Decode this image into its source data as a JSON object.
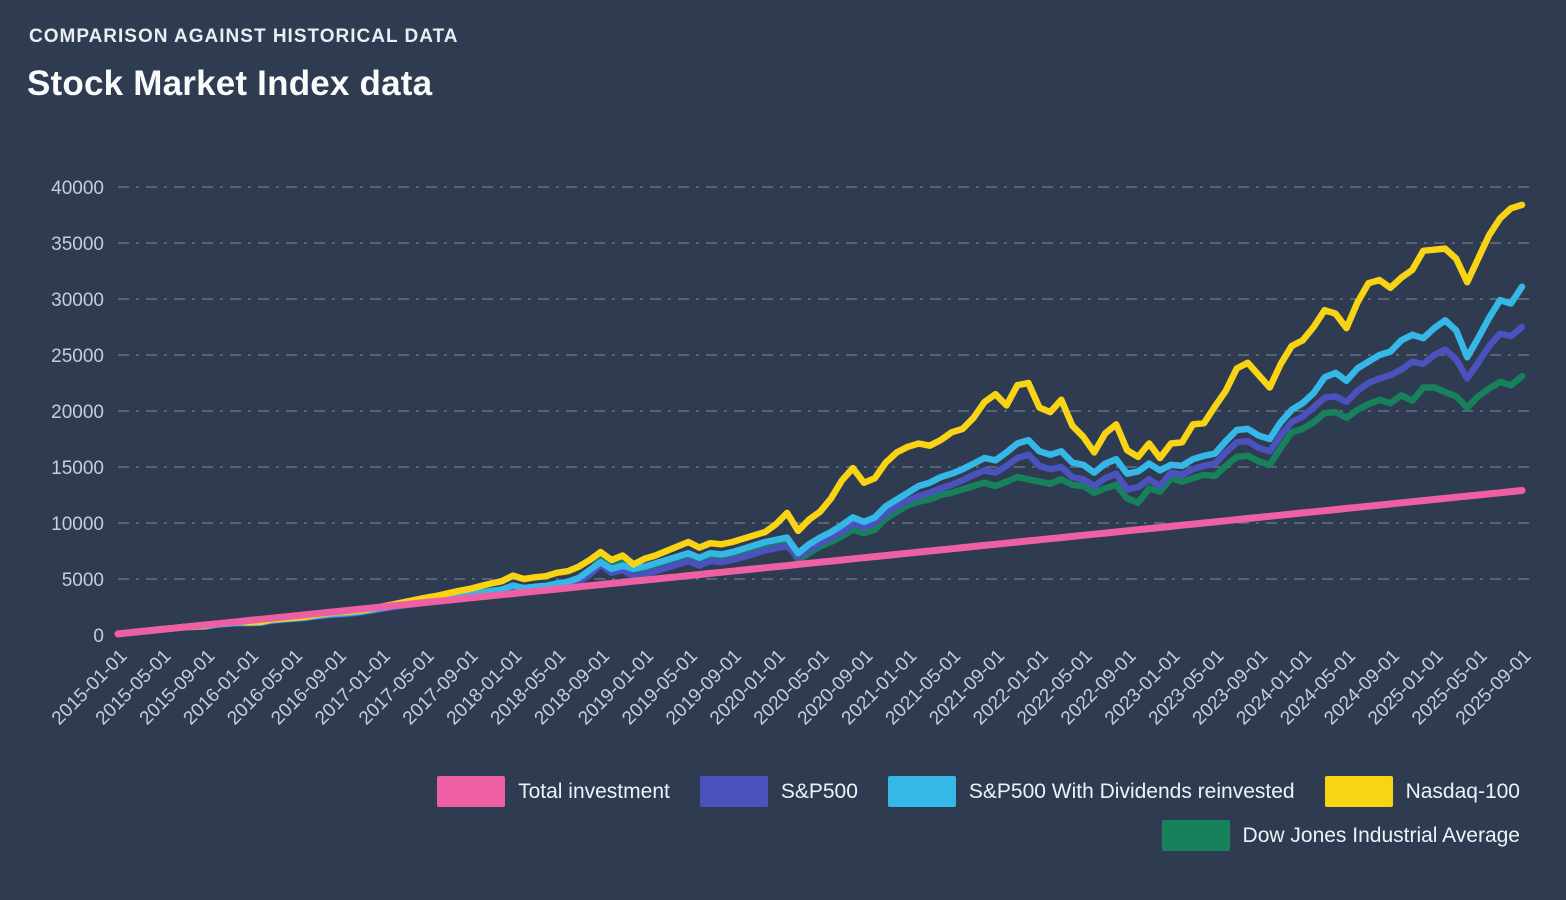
{
  "header": {
    "eyebrow": "COMPARISON AGAINST HISTORICAL DATA",
    "title": "Stock Market Index data"
  },
  "colors": {
    "background": "#2f3b50",
    "grid": "#9aa5b4",
    "axis_text": "#c5cedb",
    "title_text": "#fafbfd"
  },
  "chart_data": {
    "type": "line",
    "title": "Stock Market Index data",
    "xlabel": "",
    "ylabel": "",
    "ylim": [
      0,
      40000
    ],
    "grid": "horizontal-dashed",
    "legend_position": "bottom-right",
    "months_count": 129,
    "x_start": "2015-01-01",
    "x_end": "2025-09-01",
    "y_ticks": [
      0,
      5000,
      10000,
      15000,
      20000,
      25000,
      30000,
      35000,
      40000
    ],
    "x_tick_labels": [
      "2015-01-01",
      "2015-05-01",
      "2015-09-01",
      "2016-01-01",
      "2016-05-01",
      "2016-09-01",
      "2017-01-01",
      "2017-05-01",
      "2017-09-01",
      "2018-01-01",
      "2018-05-01",
      "2018-09-01",
      "2019-01-01",
      "2019-05-01",
      "2019-09-01",
      "2020-01-01",
      "2020-05-01",
      "2020-09-01",
      "2021-01-01",
      "2021-05-01",
      "2021-09-01",
      "2022-01-01",
      "2022-05-01",
      "2022-09-01",
      "2023-01-01",
      "2023-05-01",
      "2023-09-01",
      "2024-01-01",
      "2024-05-01",
      "2024-09-01",
      "2025-01-01",
      "2025-05-01",
      "2025-09-01"
    ],
    "draw_order": [
      4,
      1,
      2,
      3,
      0
    ],
    "series": [
      {
        "name": "Total investment",
        "color": "#ee5fa4",
        "stroke_width": 7,
        "values": [
          100,
          200,
          300,
          400,
          500,
          600,
          700,
          800,
          900,
          1000,
          1100,
          1200,
          1300,
          1400,
          1500,
          1600,
          1700,
          1800,
          1900,
          2000,
          2100,
          2200,
          2300,
          2400,
          2500,
          2600,
          2700,
          2800,
          2900,
          3000,
          3100,
          3200,
          3300,
          3400,
          3500,
          3600,
          3700,
          3800,
          3900,
          4000,
          4100,
          4200,
          4300,
          4400,
          4500,
          4600,
          4700,
          4800,
          4900,
          5000,
          5100,
          5200,
          5300,
          5400,
          5500,
          5600,
          5700,
          5800,
          5900,
          6000,
          6100,
          6200,
          6300,
          6400,
          6500,
          6600,
          6700,
          6800,
          6900,
          7000,
          7100,
          7200,
          7300,
          7400,
          7500,
          7600,
          7700,
          7800,
          7900,
          8000,
          8100,
          8200,
          8300,
          8400,
          8500,
          8600,
          8700,
          8800,
          8900,
          9000,
          9100,
          9200,
          9300,
          9400,
          9500,
          9600,
          9700,
          9800,
          9900,
          10000,
          10100,
          10200,
          10300,
          10400,
          10500,
          10600,
          10700,
          10800,
          10900,
          11000,
          11100,
          11200,
          11300,
          11400,
          11500,
          11600,
          11700,
          11800,
          11900,
          12000,
          12100,
          12200,
          12300,
          12400,
          12500,
          12600,
          12700,
          12800,
          12900
        ]
      },
      {
        "name": "S&P500",
        "color": "#4b51bd",
        "stroke_width": 6.5,
        "values": [
          100,
          205,
          295,
          400,
          500,
          590,
          690,
          720,
          780,
          930,
          1010,
          1080,
          1060,
          1100,
          1280,
          1370,
          1450,
          1520,
          1660,
          1760,
          1850,
          1900,
          2000,
          2160,
          2320,
          2480,
          2620,
          2760,
          2900,
          3020,
          3160,
          3300,
          3420,
          3580,
          3740,
          3860,
          4200,
          3980,
          4070,
          4130,
          4330,
          4470,
          4750,
          5400,
          6250,
          5550,
          5800,
          5200,
          5400,
          5700,
          6000,
          6300,
          6600,
          6200,
          6600,
          6500,
          6700,
          6950,
          7250,
          7550,
          7750,
          7950,
          7000,
          7600,
          8200,
          8700,
          9200,
          10000,
          9600,
          10000,
          10900,
          11500,
          12000,
          12400,
          12700,
          13100,
          13400,
          13800,
          14300,
          14700,
          14500,
          15100,
          15800,
          16100,
          15100,
          14800,
          15000,
          14100,
          13900,
          13300,
          14000,
          14400,
          13000,
          13200,
          13900,
          13300,
          14500,
          14300,
          14800,
          15100,
          15300,
          16300,
          17200,
          17300,
          16700,
          16400,
          17800,
          19000,
          19500,
          20300,
          21200,
          21300,
          20800,
          21800,
          22500,
          22900,
          23200,
          23700,
          24400,
          24200,
          25000,
          25500,
          24600,
          22900,
          24300,
          25800,
          26900,
          26700,
          27500
        ]
      },
      {
        "name": "S&P500 With Dividends reinvested",
        "color": "#35b8e8",
        "stroke_width": 6.5,
        "values": [
          100,
          205,
          300,
          405,
          505,
          595,
          700,
          730,
          790,
          950,
          1030,
          1100,
          1080,
          1120,
          1310,
          1400,
          1480,
          1560,
          1700,
          1810,
          1900,
          1960,
          2060,
          2230,
          2400,
          2570,
          2720,
          2870,
          3020,
          3150,
          3300,
          3450,
          3580,
          3750,
          3920,
          4060,
          4420,
          4200,
          4300,
          4380,
          4600,
          4750,
          5100,
          5800,
          6500,
          5900,
          6200,
          5900,
          6100,
          6400,
          6700,
          7000,
          7300,
          6900,
          7300,
          7200,
          7400,
          7700,
          8000,
          8300,
          8500,
          8700,
          7300,
          8100,
          8700,
          9200,
          9800,
          10500,
          10100,
          10500,
          11500,
          12100,
          12700,
          13300,
          13600,
          14100,
          14400,
          14800,
          15300,
          15800,
          15600,
          16300,
          17100,
          17400,
          16400,
          16100,
          16400,
          15400,
          15200,
          14500,
          15300,
          15700,
          14400,
          14600,
          15300,
          14700,
          15200,
          15100,
          15700,
          16000,
          16200,
          17300,
          18300,
          18400,
          17800,
          17500,
          19000,
          20100,
          20700,
          21600,
          23000,
          23400,
          22700,
          23800,
          24400,
          25000,
          25300,
          26300,
          26800,
          26500,
          27400,
          28100,
          27200,
          24800,
          26500,
          28300,
          29900,
          29600,
          31100
        ]
      },
      {
        "name": "Nasdaq-100",
        "color": "#f8d414",
        "stroke_width": 6.5,
        "values": [
          100,
          210,
          310,
          420,
          530,
          610,
          720,
          760,
          830,
          1000,
          1100,
          1170,
          1140,
          1180,
          1380,
          1460,
          1540,
          1620,
          1780,
          1920,
          2040,
          2080,
          2170,
          2320,
          2520,
          2720,
          2920,
          3120,
          3320,
          3480,
          3700,
          3920,
          4100,
          4350,
          4600,
          4800,
          5300,
          5000,
          5150,
          5250,
          5550,
          5700,
          6100,
          6700,
          7400,
          6700,
          7100,
          6300,
          6800,
          7100,
          7500,
          7900,
          8300,
          7800,
          8200,
          8100,
          8300,
          8600,
          8900,
          9200,
          9900,
          10900,
          9300,
          10300,
          11000,
          12200,
          13800,
          14900,
          13600,
          14000,
          15400,
          16300,
          16800,
          17100,
          16900,
          17400,
          18100,
          18400,
          19400,
          20800,
          21500,
          20500,
          22300,
          22500,
          20300,
          19900,
          21000,
          18700,
          17700,
          16300,
          18000,
          18800,
          16500,
          15900,
          17100,
          15800,
          17100,
          17200,
          18800,
          18900,
          20400,
          21800,
          23800,
          24300,
          23200,
          22100,
          24200,
          25800,
          26300,
          27500,
          29000,
          28700,
          27400,
          29700,
          31400,
          31700,
          31000,
          31900,
          32600,
          34300,
          34400,
          34500,
          33600,
          31500,
          33600,
          35700,
          37200,
          38100,
          38400
        ]
      },
      {
        "name": "Dow Jones Industrial Average",
        "color": "#17815c",
        "stroke_width": 6.5,
        "values": [
          100,
          200,
          290,
          395,
          495,
          580,
          680,
          710,
          770,
          920,
          1000,
          1070,
          1050,
          1090,
          1270,
          1360,
          1440,
          1510,
          1650,
          1750,
          1830,
          1880,
          2000,
          2170,
          2330,
          2500,
          2640,
          2780,
          2920,
          3040,
          3190,
          3330,
          3460,
          3630,
          3800,
          3950,
          4350,
          4120,
          4200,
          4260,
          4480,
          4600,
          4900,
          5600,
          6900,
          6200,
          6500,
          5800,
          6000,
          6300,
          6600,
          6900,
          7200,
          6700,
          7100,
          7000,
          7200,
          7450,
          7750,
          8050,
          8200,
          8300,
          6700,
          7300,
          7900,
          8300,
          8800,
          9400,
          9100,
          9400,
          10400,
          11000,
          11600,
          11900,
          12100,
          12500,
          12700,
          13000,
          13300,
          13600,
          13300,
          13700,
          14100,
          13900,
          13700,
          13500,
          13900,
          13400,
          13300,
          12700,
          13100,
          13400,
          12200,
          11800,
          13100,
          12800,
          14000,
          13700,
          14000,
          14300,
          14200,
          15100,
          15900,
          16000,
          15500,
          15200,
          16700,
          18100,
          18400,
          19000,
          19800,
          19900,
          19400,
          20100,
          20600,
          21000,
          20700,
          21400,
          20900,
          22100,
          22100,
          21700,
          21300,
          20300,
          21300,
          22000,
          22600,
          22300,
          23100
        ]
      }
    ]
  }
}
